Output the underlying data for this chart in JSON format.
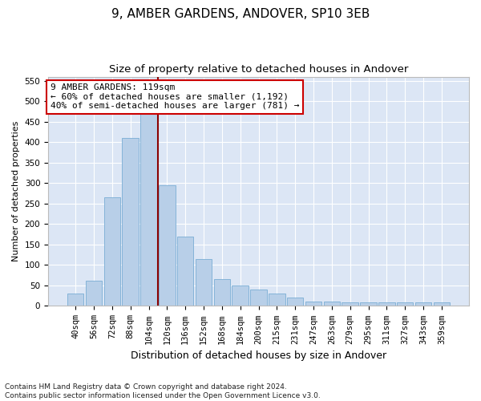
{
  "title": "9, AMBER GARDENS, ANDOVER, SP10 3EB",
  "subtitle": "Size of property relative to detached houses in Andover",
  "xlabel": "Distribution of detached houses by size in Andover",
  "ylabel": "Number of detached properties",
  "categories": [
    "40sqm",
    "56sqm",
    "72sqm",
    "88sqm",
    "104sqm",
    "120sqm",
    "136sqm",
    "152sqm",
    "168sqm",
    "184sqm",
    "200sqm",
    "215sqm",
    "231sqm",
    "247sqm",
    "263sqm",
    "279sqm",
    "295sqm",
    "311sqm",
    "327sqm",
    "343sqm",
    "359sqm"
  ],
  "values": [
    30,
    62,
    265,
    410,
    475,
    295,
    170,
    115,
    65,
    50,
    40,
    30,
    20,
    10,
    10,
    8,
    8,
    8,
    8,
    8,
    8
  ],
  "bar_color": "#b8cfe8",
  "bar_edge_color": "#7aadd4",
  "vline_color": "#8b0000",
  "annotation_text": "9 AMBER GARDENS: 119sqm\n← 60% of detached houses are smaller (1,192)\n40% of semi-detached houses are larger (781) →",
  "annotation_box_color": "#ffffff",
  "annotation_box_edge_color": "#cc0000",
  "ylim": [
    0,
    560
  ],
  "yticks": [
    0,
    50,
    100,
    150,
    200,
    250,
    300,
    350,
    400,
    450,
    500,
    550
  ],
  "bg_color": "#dce6f5",
  "footer_text": "Contains HM Land Registry data © Crown copyright and database right 2024.\nContains public sector information licensed under the Open Government Licence v3.0.",
  "title_fontsize": 11,
  "subtitle_fontsize": 9.5,
  "xlabel_fontsize": 9,
  "ylabel_fontsize": 8,
  "tick_fontsize": 7.5,
  "annotation_fontsize": 8,
  "footer_fontsize": 6.5,
  "grid_color": "#ffffff"
}
